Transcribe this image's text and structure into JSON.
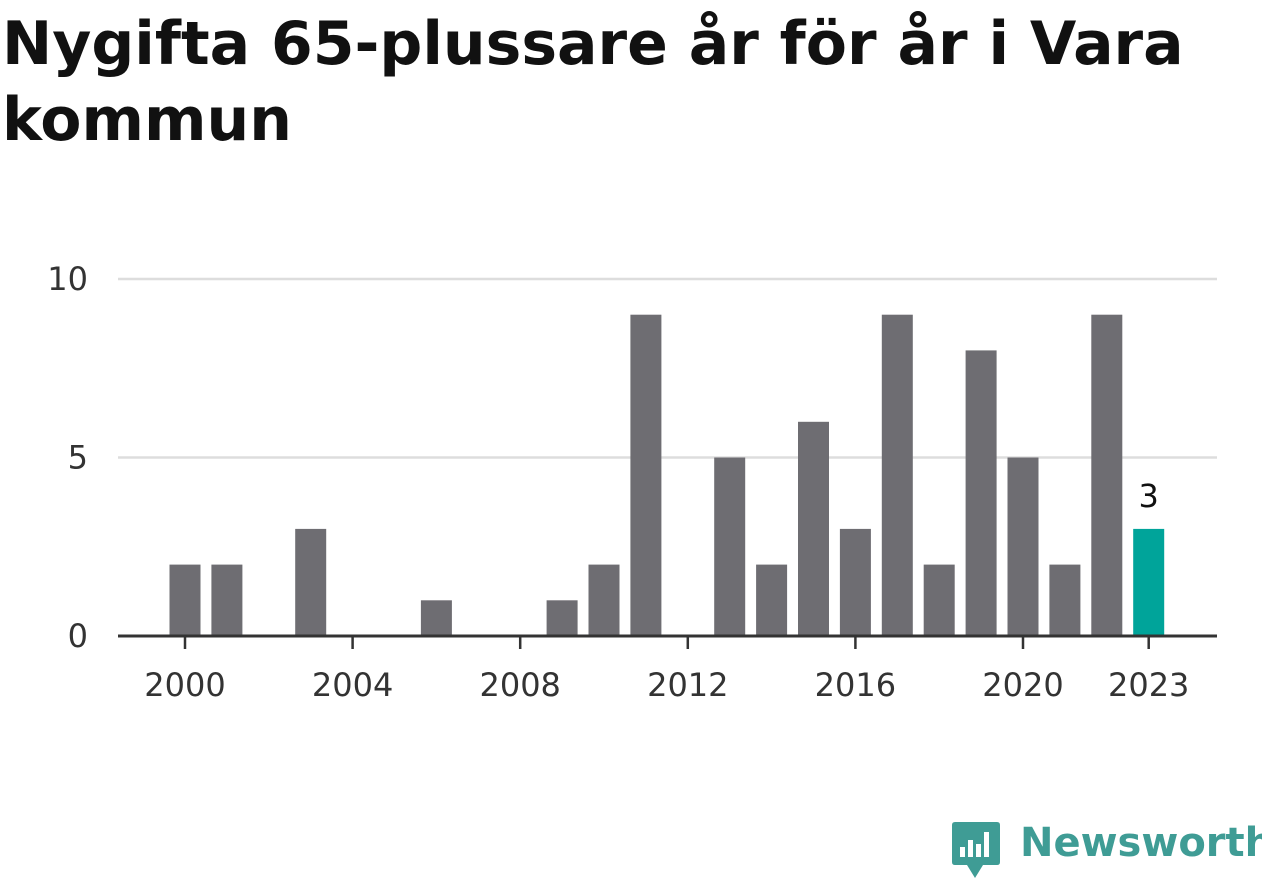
{
  "title": "Nygifta 65-plussare år för år i Vara kommun",
  "brand": {
    "name": "Newsworthy",
    "color": "#3f9c95"
  },
  "chart_data": {
    "type": "bar",
    "x": [
      2000,
      2001,
      2002,
      2003,
      2004,
      2005,
      2006,
      2007,
      2008,
      2009,
      2010,
      2011,
      2012,
      2013,
      2014,
      2015,
      2016,
      2017,
      2018,
      2019,
      2020,
      2021,
      2022,
      2023
    ],
    "values": [
      2,
      2,
      0,
      3,
      0,
      0,
      1,
      0,
      0,
      1,
      2,
      9,
      0,
      5,
      2,
      6,
      3,
      9,
      2,
      8,
      5,
      2,
      9,
      3
    ],
    "xticks": [
      "2000",
      "2004",
      "2008",
      "2012",
      "2016",
      "2020",
      "2023"
    ],
    "yticks": [
      "0",
      "5",
      "10"
    ],
    "ylim": [
      0,
      10
    ],
    "grid": true,
    "highlight": {
      "x": 2023,
      "label": "3"
    },
    "colors": {
      "bar": "#6e6d72",
      "highlight": "#00a49a",
      "grid": "#dddddd",
      "axis": "#333333"
    }
  }
}
